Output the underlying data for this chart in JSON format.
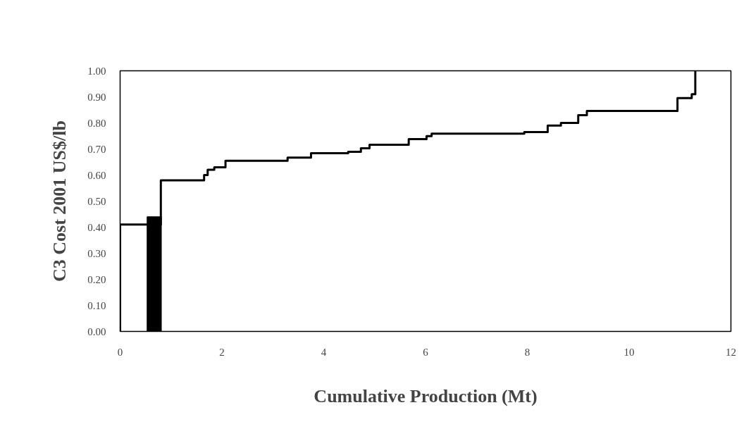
{
  "chart_data": {
    "type": "step",
    "xlabel": "Cumulative Production (Mt)",
    "ylabel": "C3 Cost 2001 US$/lb",
    "xlim": [
      0,
      12
    ],
    "ylim": [
      0,
      1
    ],
    "xticks": [
      0,
      2,
      4,
      6,
      8,
      10,
      12
    ],
    "yticks": [
      {
        "value": 0,
        "label": "0.00"
      },
      {
        "value": 0.1,
        "label": "0.10"
      },
      {
        "value": 0.2,
        "label": "0.20"
      },
      {
        "value": 0.3,
        "label": "0.30"
      },
      {
        "value": 0.4,
        "label": "0.40"
      },
      {
        "value": 0.5,
        "label": "0.50"
      },
      {
        "value": 0.6,
        "label": "0.60"
      },
      {
        "value": 0.7,
        "label": "0.70"
      },
      {
        "value": 0.8,
        "label": "0.80"
      },
      {
        "value": 0.9,
        "label": "0.90"
      },
      {
        "value": 1,
        "label": "1.00"
      }
    ],
    "grid": false,
    "series": [
      {
        "type": "bar",
        "color": "#000000",
        "x": [
          0.67
        ],
        "values": [
          0.44
        ]
      },
      {
        "color": "#000000",
        "x": [
          0,
          0,
          0.8,
          1.65,
          1.72,
          1.85,
          2.07,
          3.29,
          3.75,
          4.48,
          4.73,
          4.9,
          5.67,
          6.02,
          6.12,
          7.94,
          8.4,
          8.66,
          9.0,
          9.17,
          10.95,
          11.23,
          11.3
        ],
        "values": [
          0,
          0.41,
          0.58,
          0.6,
          0.62,
          0.63,
          0.655,
          0.667,
          0.684,
          0.689,
          0.703,
          0.716,
          0.738,
          0.749,
          0.759,
          0.765,
          0.79,
          0.8,
          0.83,
          0.846,
          0.895,
          0.91,
          1.0
        ]
      }
    ]
  }
}
